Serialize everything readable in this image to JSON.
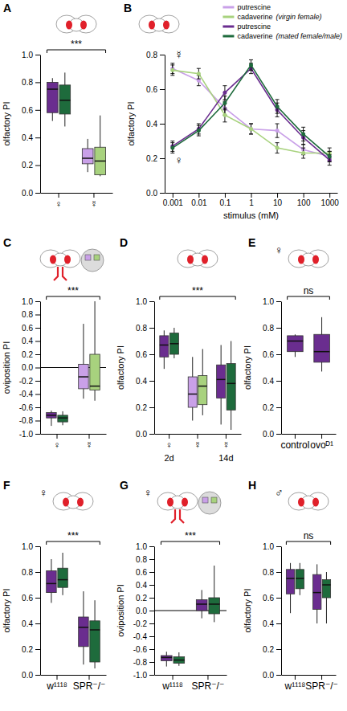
{
  "chart_data": [
    {
      "type": "box",
      "panel": "A",
      "ylabel": "olfactory PI",
      "categories": [
        "♀",
        "☿"
      ],
      "series": [
        {
          "colors": [
            "#6a2d8f",
            "#c9a0e8"
          ],
          "boxes": [
            {
              "low": 0.52,
              "q1": 0.58,
              "median": 0.75,
              "q3": 0.8,
              "high": 0.83
            },
            {
              "low": 0.15,
              "q1": 0.21,
              "median": 0.25,
              "q3": 0.32,
              "high": 0.39
            }
          ]
        },
        {
          "colors": [
            "#1e6b3c",
            "#a8d27e"
          ],
          "boxes": [
            {
              "low": 0.48,
              "q1": 0.57,
              "median": 0.67,
              "q3": 0.78,
              "high": 0.87
            },
            {
              "low": 0.12,
              "q1": 0.13,
              "median": 0.23,
              "q3": 0.33,
              "high": 0.56
            }
          ]
        }
      ],
      "ylim": [
        0,
        1
      ],
      "yticks": [
        {
          "value": 0,
          "label": "0.0"
        },
        0.2,
        0.4,
        0.6,
        0.8,
        {
          "value": 1,
          "label": "1.0"
        }
      ],
      "significance": "***"
    },
    {
      "type": "line",
      "panel": "B",
      "ylabel": "olfactory PI",
      "xlabel": "stimulus (mM)",
      "log": "x",
      "x": [
        0.001,
        0.01,
        0.1,
        1,
        10,
        100,
        1000
      ],
      "series": [
        {
          "name": "putrescine",
          "color": "#c9a0e8",
          "values": [
            0.72,
            0.65,
            0.49,
            0.37,
            0.36,
            0.25,
            0.21
          ],
          "errors": [
            0.03,
            0.03,
            0.04,
            0.03,
            0.04,
            0.03,
            0.03
          ]
        },
        {
          "name": "cadaverine",
          "group": "(virgin female)",
          "color": "#a8d27e",
          "values": [
            0.71,
            0.69,
            0.45,
            0.37,
            0.26,
            0.23,
            0.23
          ],
          "errors": [
            0.03,
            0.03,
            0.04,
            0.03,
            0.03,
            0.03,
            0.03
          ]
        },
        {
          "name": "putrescine",
          "color": "#6a2d8f",
          "values": [
            0.27,
            0.37,
            0.58,
            0.72,
            0.48,
            0.32,
            0.19
          ],
          "errors": [
            0.03,
            0.03,
            0.04,
            0.03,
            0.04,
            0.04,
            0.03
          ]
        },
        {
          "name": "cadaverine",
          "group": "(mated female/male)",
          "color": "#1e6b3c",
          "values": [
            0.26,
            0.36,
            0.52,
            0.74,
            0.5,
            0.34,
            0.21
          ],
          "errors": [
            0.03,
            0.03,
            0.04,
            0.03,
            0.04,
            0.04,
            0.03
          ]
        }
      ],
      "xlim": [
        0.0005,
        2000
      ],
      "xticks": [
        0.001,
        0.01,
        0.1,
        1,
        10,
        100,
        1000
      ],
      "ylim": [
        0,
        0.8
      ],
      "yticks": [
        {
          "value": 0,
          "label": "0.0"
        },
        0.2,
        0.4,
        0.6,
        0.8
      ],
      "legend": "above right",
      "annotations": [
        "☿",
        "♀"
      ]
    },
    {
      "type": "box",
      "panel": "C",
      "ylabel": "oviposition PI",
      "categories": [
        "♀",
        "☿"
      ],
      "series": [
        {
          "colors": [
            "#6a2d8f",
            "#c9a0e8"
          ],
          "boxes": [
            {
              "low": -0.88,
              "q1": -0.76,
              "median": -0.72,
              "q3": -0.68,
              "high": -0.65
            },
            {
              "low": -0.47,
              "q1": -0.32,
              "median": -0.14,
              "q3": 0.05,
              "high": 0.66
            }
          ]
        },
        {
          "colors": [
            "#1e6b3c",
            "#a8d27e"
          ],
          "boxes": [
            {
              "low": -0.87,
              "q1": -0.82,
              "median": -0.76,
              "q3": -0.72,
              "high": -0.66
            },
            {
              "low": -0.5,
              "q1": -0.34,
              "median": -0.28,
              "q3": 0.2,
              "high": 1
            }
          ]
        }
      ],
      "ylim": [
        -1,
        1
      ],
      "yticks": [
        {
          "value": -1,
          "label": "-1.0"
        },
        -0.8,
        -0.6,
        -0.4,
        -0.2,
        {
          "value": 0,
          "label": "0.0"
        },
        0.2,
        0.4,
        0.6,
        0.8,
        {
          "value": 1,
          "label": "1.0"
        }
      ],
      "reference_line": 0,
      "significance": "***"
    },
    {
      "type": "box",
      "panel": "D",
      "ylabel": "olfactory PI",
      "categories": [
        "♀",
        "☿",
        "☿"
      ],
      "sublabels": [
        "2d",
        null,
        "14d"
      ],
      "series": [
        {
          "colors": [
            "#6a2d8f",
            "#c9a0e8",
            "#6a2d8f"
          ],
          "boxes": [
            {
              "low": 0.49,
              "q1": 0.58,
              "median": 0.67,
              "q3": 0.74,
              "high": 0.78
            },
            {
              "low": 0.1,
              "q1": 0.2,
              "median": 0.3,
              "q3": 0.43,
              "high": 0.58
            },
            {
              "low": 0.07,
              "q1": 0.27,
              "median": 0.41,
              "q3": 0.52,
              "high": 0.67
            }
          ]
        },
        {
          "colors": [
            "#1e6b3c",
            "#a8d27e",
            "#1e6b3c"
          ],
          "boxes": [
            {
              "low": 0.57,
              "q1": 0.6,
              "median": 0.68,
              "q3": 0.76,
              "high": 0.8
            },
            {
              "low": 0.14,
              "q1": 0.22,
              "median": 0.36,
              "q3": 0.44,
              "high": 0.64
            },
            {
              "low": 0.03,
              "q1": 0.18,
              "median": 0.38,
              "q3": 0.53,
              "high": 0.7
            }
          ]
        }
      ],
      "ylim": [
        0,
        1
      ],
      "yticks": [
        {
          "value": 0,
          "label": "0.0"
        },
        0.2,
        0.4,
        0.6,
        0.8,
        {
          "value": 1,
          "label": "1.0"
        }
      ],
      "significance": "***"
    },
    {
      "type": "box",
      "panel": "E",
      "title": "♀",
      "ylabel": "olfactory PI",
      "categories": [
        "control",
        "ovoᴰ¹"
      ],
      "series": [
        {
          "colors": [
            "#6a2d8f",
            "#6a2d8f"
          ],
          "boxes": [
            {
              "low": 0.58,
              "q1": 0.62,
              "median": 0.7,
              "q3": 0.74,
              "high": 0.75
            },
            {
              "low": 0.47,
              "q1": 0.54,
              "median": 0.62,
              "q3": 0.75,
              "high": 0.88
            }
          ]
        }
      ],
      "ylim": [
        0,
        1
      ],
      "yticks": [
        {
          "value": 0,
          "label": "0.0"
        },
        0.2,
        0.4,
        0.6,
        0.8,
        {
          "value": 1,
          "label": "1.0"
        }
      ],
      "significance": "ns"
    },
    {
      "type": "box",
      "panel": "F",
      "title": "♀",
      "ylabel": "olfactory PI",
      "categories": [
        "w¹¹¹⁸",
        "SPR⁻/⁻"
      ],
      "series": [
        {
          "colors": [
            "#6a2d8f",
            "#6a2d8f"
          ],
          "boxes": [
            {
              "low": 0.56,
              "q1": 0.64,
              "median": 0.71,
              "q3": 0.81,
              "high": 0.9
            },
            {
              "low": 0.08,
              "q1": 0.22,
              "median": 0.37,
              "q3": 0.45,
              "high": 0.65
            }
          ]
        },
        {
          "colors": [
            "#1e6b3c",
            "#1e6b3c"
          ],
          "boxes": [
            {
              "low": 0.62,
              "q1": 0.68,
              "median": 0.74,
              "q3": 0.83,
              "high": 0.95
            },
            {
              "low": 0.05,
              "q1": 0.1,
              "median": 0.35,
              "q3": 0.42,
              "high": 0.58
            }
          ]
        }
      ],
      "ylim": [
        0,
        1
      ],
      "yticks": [
        {
          "value": 0,
          "label": "0.0"
        },
        0.2,
        0.4,
        0.6,
        0.8,
        {
          "value": 1,
          "label": "1.0"
        }
      ],
      "significance": "***"
    },
    {
      "type": "box",
      "panel": "G",
      "title": "♀",
      "ylabel": "oviposition PI",
      "categories": [
        "w¹¹¹⁸",
        "SPR⁻/⁻"
      ],
      "series": [
        {
          "colors": [
            "#6a2d8f",
            "#6a2d8f"
          ],
          "boxes": [
            {
              "low": -0.87,
              "q1": -0.78,
              "median": -0.73,
              "q3": -0.7,
              "high": -0.64
            },
            {
              "low": -0.12,
              "q1": 0,
              "median": 0.1,
              "q3": 0.17,
              "high": 0.32
            }
          ]
        },
        {
          "colors": [
            "#1e6b3c",
            "#1e6b3c"
          ],
          "boxes": [
            {
              "low": -0.86,
              "q1": -0.82,
              "median": -0.77,
              "q3": -0.72,
              "high": -0.65
            },
            {
              "low": -0.18,
              "q1": -0.05,
              "median": 0.1,
              "q3": 0.2,
              "high": 0.7
            }
          ]
        }
      ],
      "ylim": [
        -1,
        1
      ],
      "yticks": [
        {
          "value": -1,
          "label": "-1.0"
        },
        -0.8,
        -0.6,
        -0.4,
        -0.2,
        {
          "value": 0,
          "label": "0.0"
        },
        0.2,
        0.4,
        0.6,
        0.8,
        {
          "value": 1,
          "label": "1.0"
        }
      ],
      "reference_line": 0,
      "significance": "***"
    },
    {
      "type": "box",
      "panel": "H",
      "title": "♂",
      "ylabel": "olfactory PI",
      "categories": [
        "w¹¹¹⁸",
        "SPR⁻/⁻"
      ],
      "series": [
        {
          "colors": [
            "#6a2d8f",
            "#6a2d8f"
          ],
          "boxes": [
            {
              "low": 0.48,
              "q1": 0.63,
              "median": 0.75,
              "q3": 0.82,
              "high": 0.87
            },
            {
              "low": 0.4,
              "q1": 0.51,
              "median": 0.64,
              "q3": 0.78,
              "high": 0.86
            }
          ]
        },
        {
          "colors": [
            "#1e6b3c",
            "#1e6b3c"
          ],
          "boxes": [
            {
              "low": 0.62,
              "q1": 0.67,
              "median": 0.75,
              "q3": 0.82,
              "high": 0.87
            },
            {
              "low": 0.4,
              "q1": 0.6,
              "median": 0.7,
              "q3": 0.74,
              "high": 0.8
            }
          ]
        }
      ],
      "ylim": [
        0,
        1
      ],
      "yticks": [
        {
          "value": 0,
          "label": "0.0"
        },
        0.2,
        0.4,
        0.6,
        0.8,
        {
          "value": 1,
          "label": "1.0"
        }
      ],
      "significance": "ns"
    }
  ]
}
